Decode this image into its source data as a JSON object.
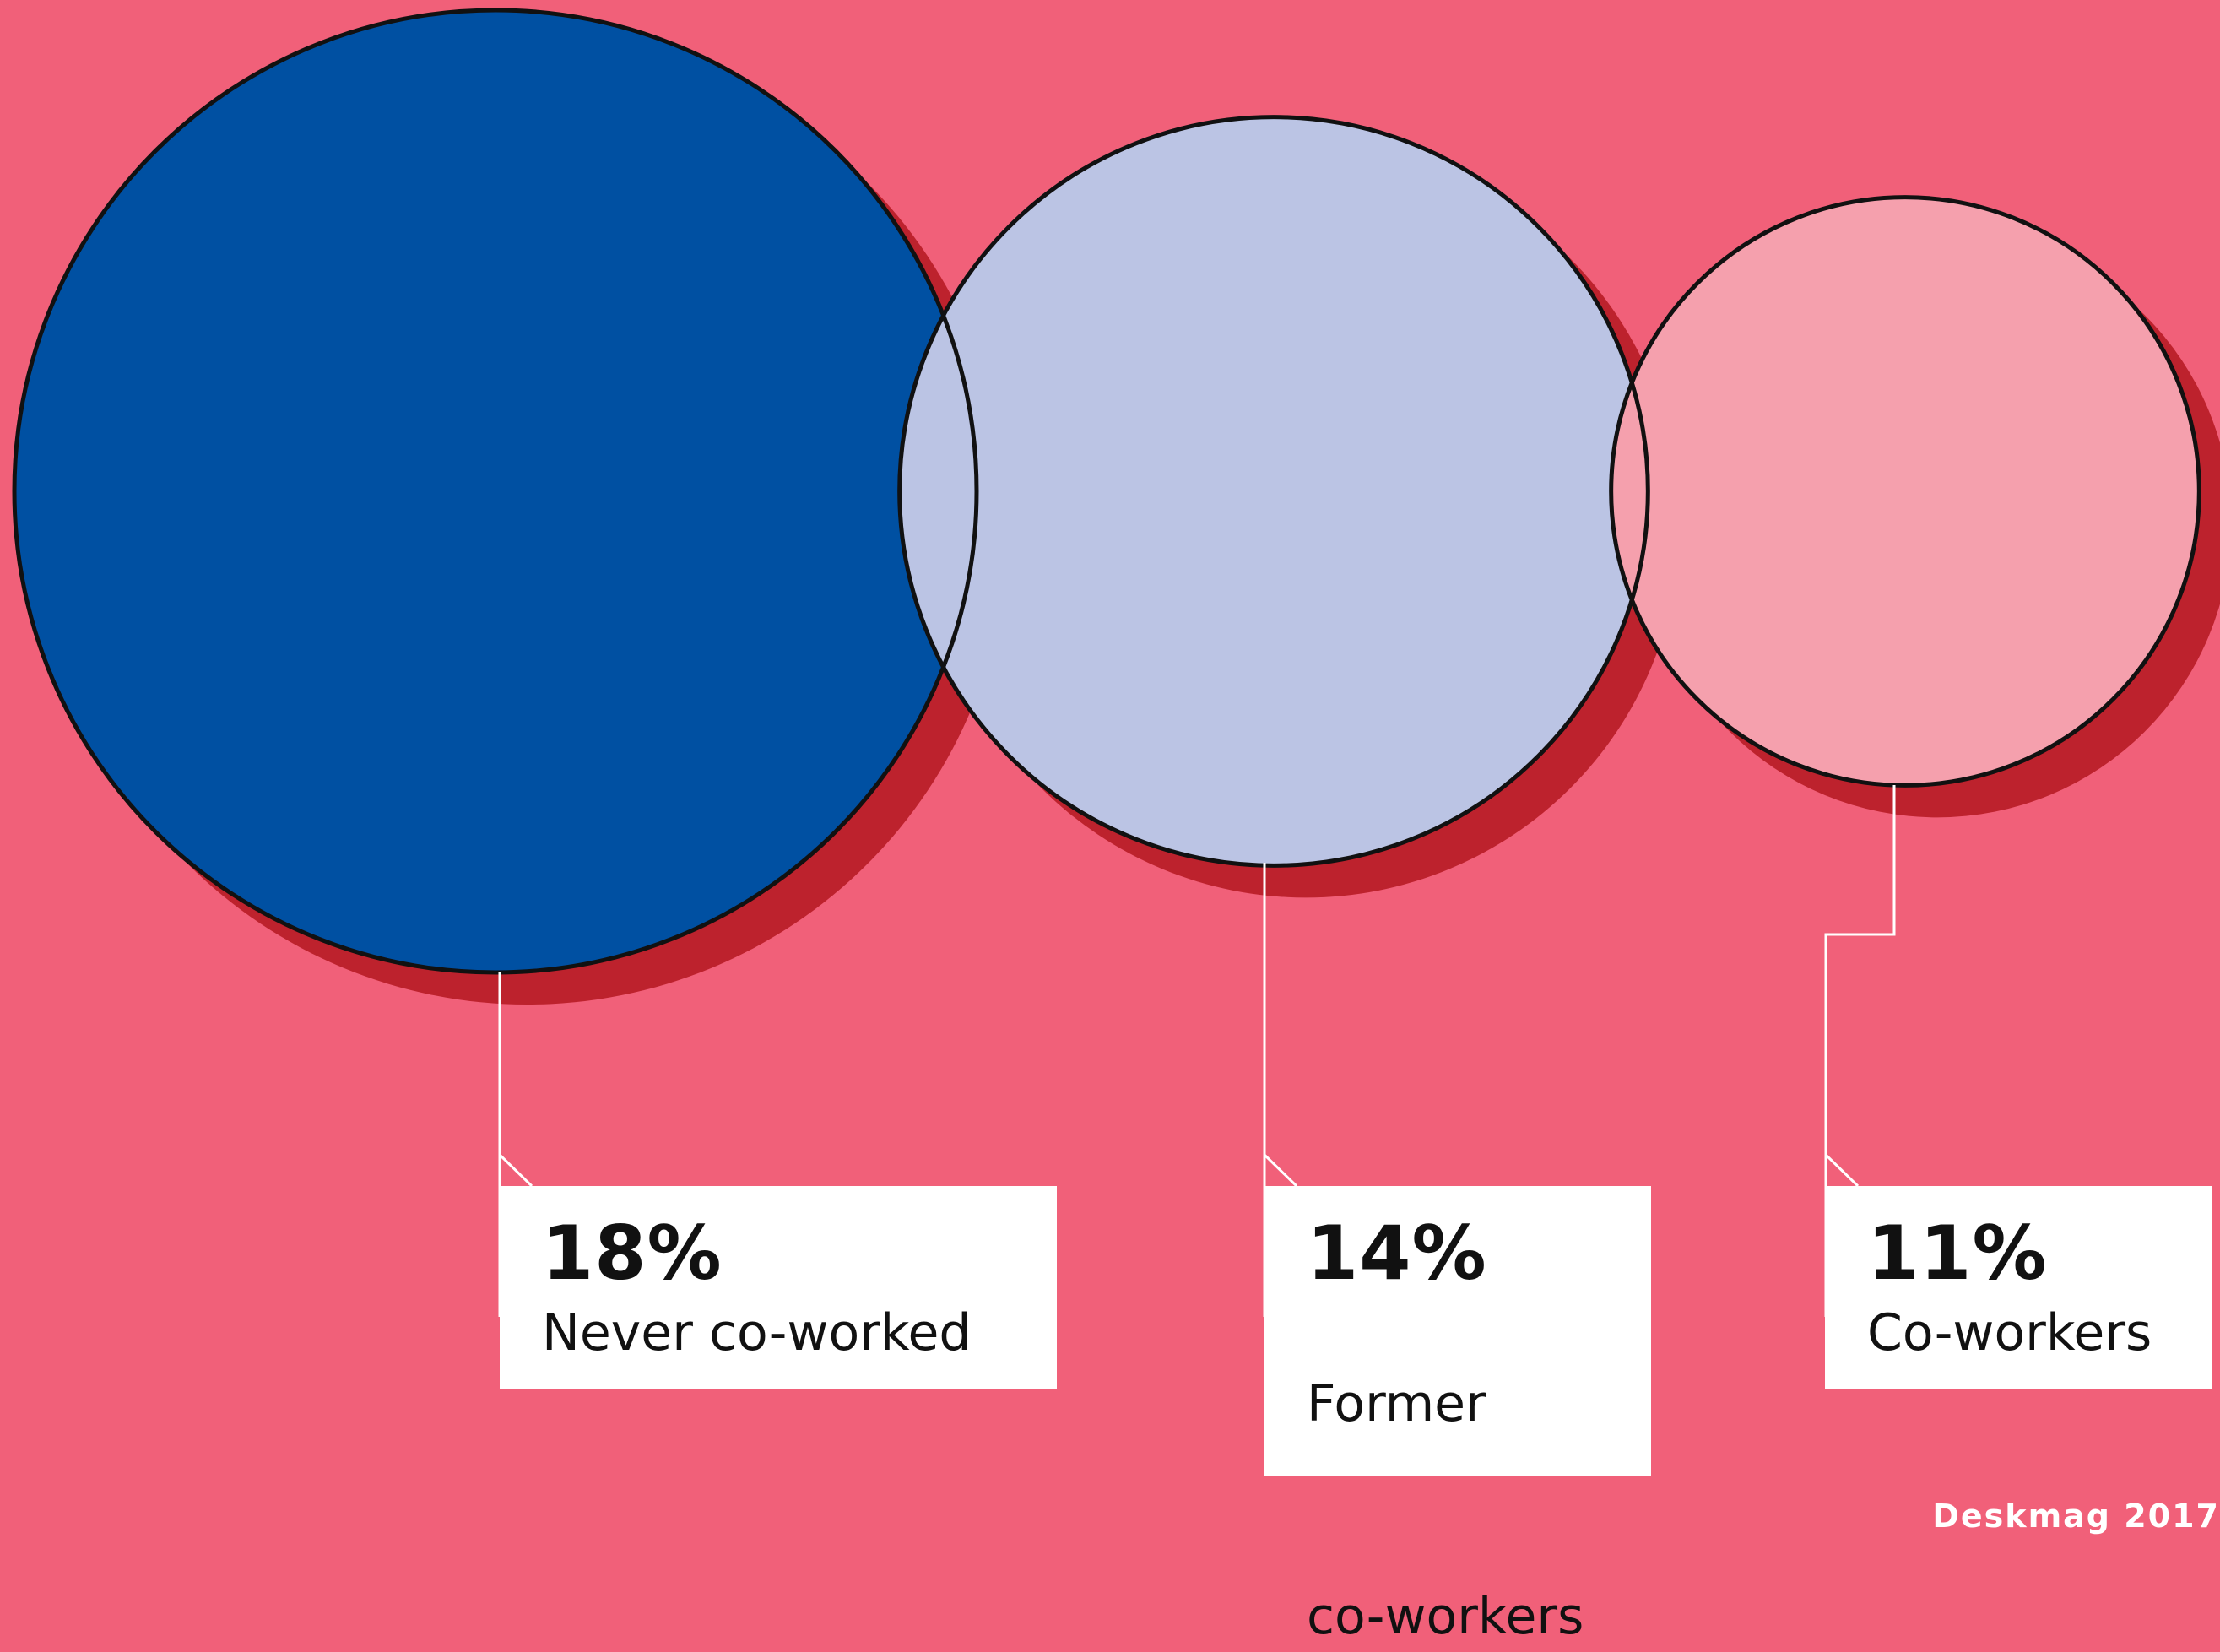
{
  "chart_data": {
    "type": "bubble",
    "title": "",
    "categories": [
      "Never co-worked",
      "Former co-workers",
      "Co-workers"
    ],
    "values": [
      18,
      14,
      11
    ],
    "value_labels": [
      "18%",
      "14%",
      "11%"
    ],
    "unit": "%",
    "label_lines": [
      [
        "Never co-worked"
      ],
      [
        "Former",
        "co-workers"
      ],
      [
        "Co-workers"
      ]
    ],
    "colors": [
      "#0050a2",
      "#bbc4e4",
      "#f5a0ad"
    ],
    "shadow_color": "#bd222d",
    "background_color": "#f16079"
  },
  "source": "Deskmag 2017"
}
